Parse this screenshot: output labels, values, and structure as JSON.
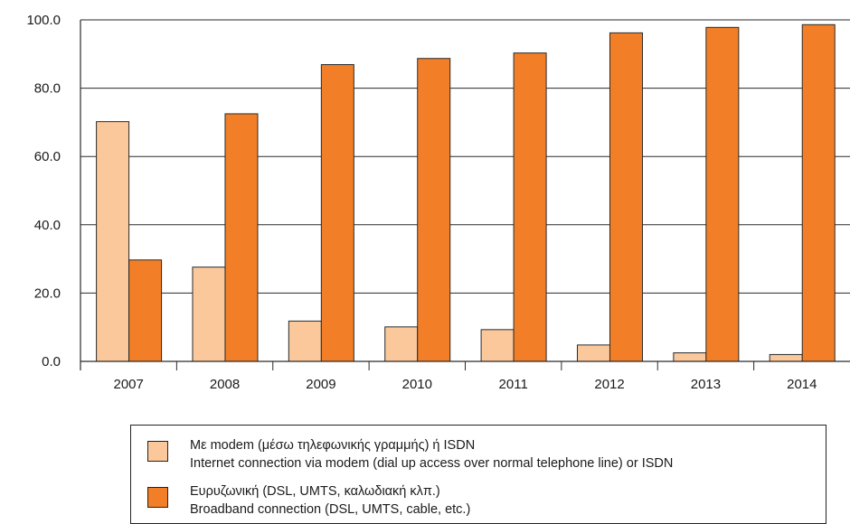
{
  "chart_data": {
    "type": "bar",
    "categories": [
      "2007",
      "2008",
      "2009",
      "2010",
      "2011",
      "2012",
      "2013",
      "2014"
    ],
    "series": [
      {
        "name": "Με modem (μέσω τηλεφωνικής γραμμής) ή ISDN / Internet connection via modem (dial up access over normal telephone line) or ISDN",
        "color": "#fbc89b",
        "values": [
          70.2,
          27.6,
          11.8,
          10.1,
          9.3,
          4.8,
          2.5,
          2.0
        ]
      },
      {
        "name": "Ευρυζωνική (DSL, UMTS, καλωδιακή κλπ.) / Broadband connection (DSL, UMTS, cable, etc.)",
        "color": "#f27f27",
        "values": [
          29.7,
          72.5,
          86.9,
          88.7,
          90.3,
          96.2,
          97.8,
          98.6
        ]
      }
    ],
    "title": "",
    "xlabel": "",
    "ylabel": "",
    "ylim": [
      0,
      100
    ],
    "yticks": [
      "0.0",
      "20.0",
      "40.0",
      "60.0",
      "80.0",
      "100.0"
    ],
    "grid": true,
    "legend_position": "bottom"
  },
  "legend": {
    "items": [
      {
        "label_gr": "Με modem (μέσω τηλεφωνικής γραμμής) ή ISDN",
        "label_en": "Internet connection via modem (dial up access over normal telephone line) or ISDN",
        "color": "#fbc89b"
      },
      {
        "label_gr": "Ευρυζωνική (DSL, UMTS, καλωδιακή κλπ.)",
        "label_en": "Broadband connection (DSL, UMTS, cable, etc.)",
        "color": "#f27f27"
      }
    ]
  }
}
